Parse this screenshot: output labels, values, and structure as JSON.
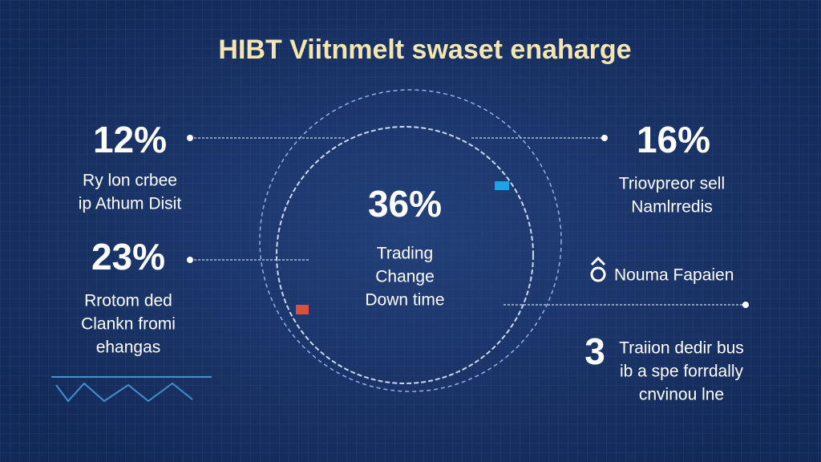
{
  "header": {
    "title": "HIBT Viitnmelt swaset enaharge"
  },
  "center": {
    "stat": "36%",
    "lines": [
      "Trading",
      "Change",
      "Down time"
    ]
  },
  "left": [
    {
      "stat": "12%",
      "lines": [
        "Ry lon crbee",
        "ip Athum Disit"
      ]
    },
    {
      "stat": "23%",
      "lines": [
        "Rrotom ded",
        "Clankn fromi",
        "ehangas"
      ]
    }
  ],
  "right": [
    {
      "stat": "16%",
      "lines": [
        "Triovpreor sell",
        "Namlrredis"
      ]
    },
    {
      "label": "Nouma Fapaien"
    },
    {
      "stat": "3",
      "lines": [
        "Traiion dedir bus",
        "ib a spe forrdally",
        "cnvinou lne"
      ]
    }
  ]
}
